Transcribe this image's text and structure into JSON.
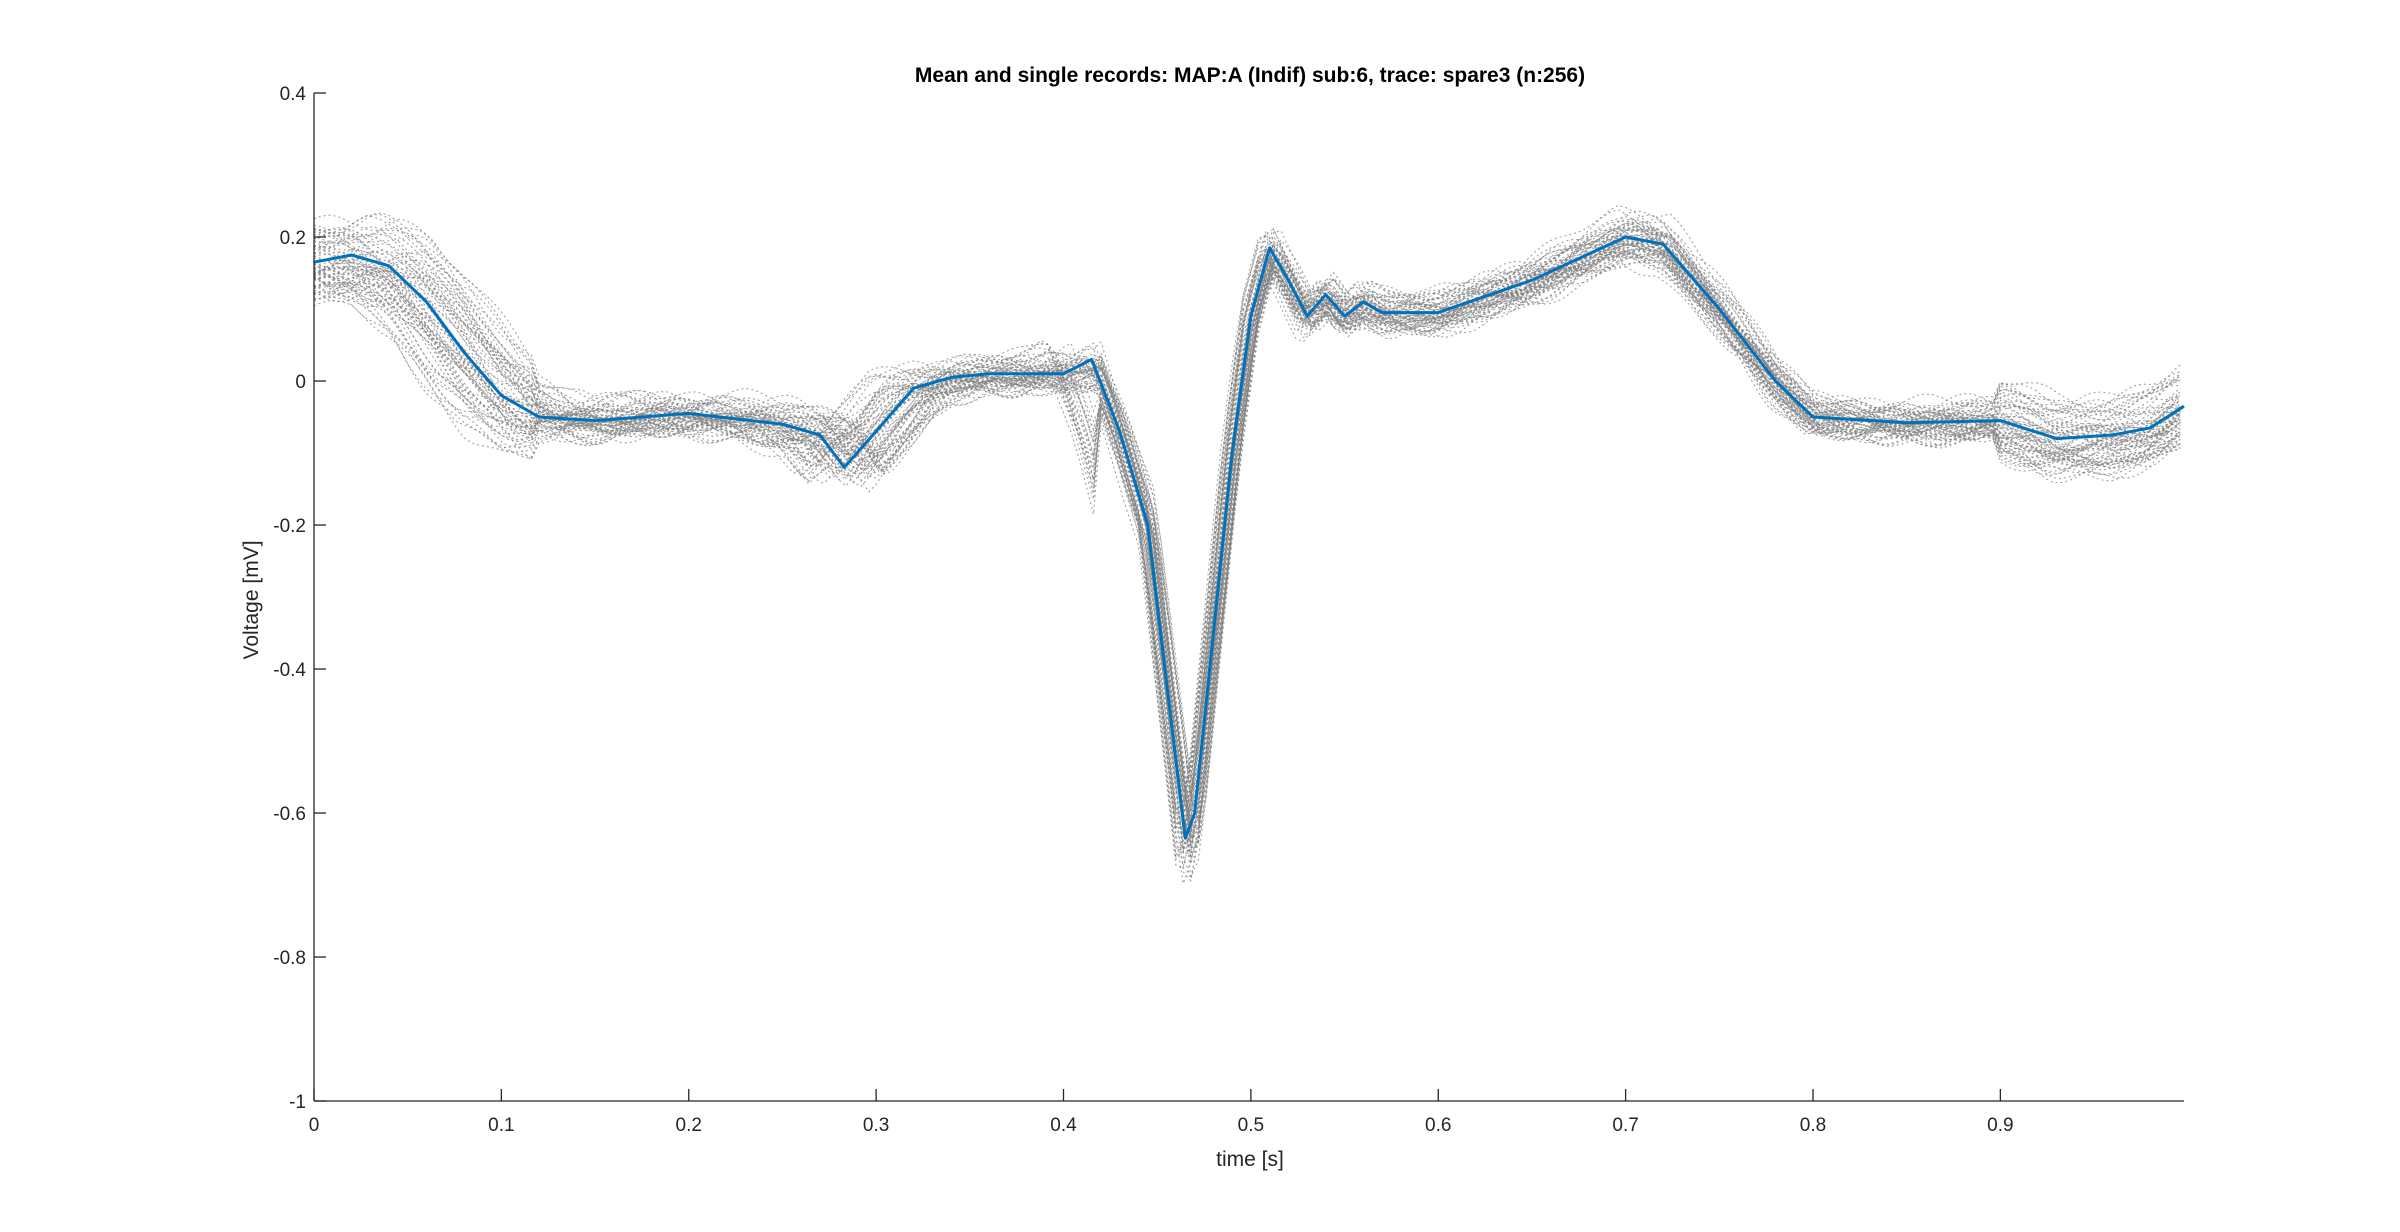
{
  "chart_data": {
    "type": "line",
    "title": "Mean and single records: MAP:A (Indif) sub:6, trace: spare3 (n:256)",
    "xlabel": "time [s]",
    "ylabel": "Voltage [mV]",
    "xlim": [
      0,
      0.998
    ],
    "ylim": [
      -1,
      0.4
    ],
    "xticks": [
      0,
      0.1,
      0.2,
      0.3,
      0.4,
      0.5,
      0.6,
      0.7,
      0.8,
      0.9
    ],
    "xtick_labels": [
      "0",
      "0.1",
      "0.2",
      "0.3",
      "0.4",
      "0.5",
      "0.6",
      "0.7",
      "0.8",
      "0.9"
    ],
    "yticks": [
      -1,
      -0.8,
      -0.6,
      -0.4,
      -0.2,
      0,
      0.2,
      0.4
    ],
    "ytick_labels": [
      "-1",
      "-0.8",
      "-0.6",
      "-0.4",
      "-0.2",
      "0",
      "0.2",
      "0.4"
    ],
    "grid": false,
    "legend": "none",
    "colors": {
      "mean": "#0072BD",
      "single": "#808080"
    },
    "series": [
      {
        "role": "mean",
        "x": [
          0,
          0.02,
          0.04,
          0.06,
          0.08,
          0.1,
          0.12,
          0.15,
          0.2,
          0.25,
          0.27,
          0.283,
          0.3,
          0.32,
          0.34,
          0.36,
          0.4,
          0.415,
          0.43,
          0.445,
          0.455,
          0.465,
          0.47,
          0.48,
          0.49,
          0.5,
          0.51,
          0.52,
          0.53,
          0.54,
          0.55,
          0.56,
          0.57,
          0.6,
          0.65,
          0.7,
          0.72,
          0.75,
          0.78,
          0.8,
          0.85,
          0.9,
          0.93,
          0.96,
          0.98,
          0.998
        ],
        "y": [
          0.165,
          0.175,
          0.16,
          0.11,
          0.04,
          -0.02,
          -0.05,
          -0.055,
          -0.045,
          -0.06,
          -0.075,
          -0.12,
          -0.07,
          -0.01,
          0.005,
          0.01,
          0.01,
          0.03,
          -0.07,
          -0.2,
          -0.42,
          -0.635,
          -0.6,
          -0.35,
          -0.1,
          0.09,
          0.185,
          0.14,
          0.09,
          0.12,
          0.09,
          0.11,
          0.095,
          0.095,
          0.14,
          0.2,
          0.19,
          0.1,
          0.0,
          -0.05,
          -0.058,
          -0.055,
          -0.08,
          -0.075,
          -0.065,
          -0.035
        ]
      }
    ]
  }
}
